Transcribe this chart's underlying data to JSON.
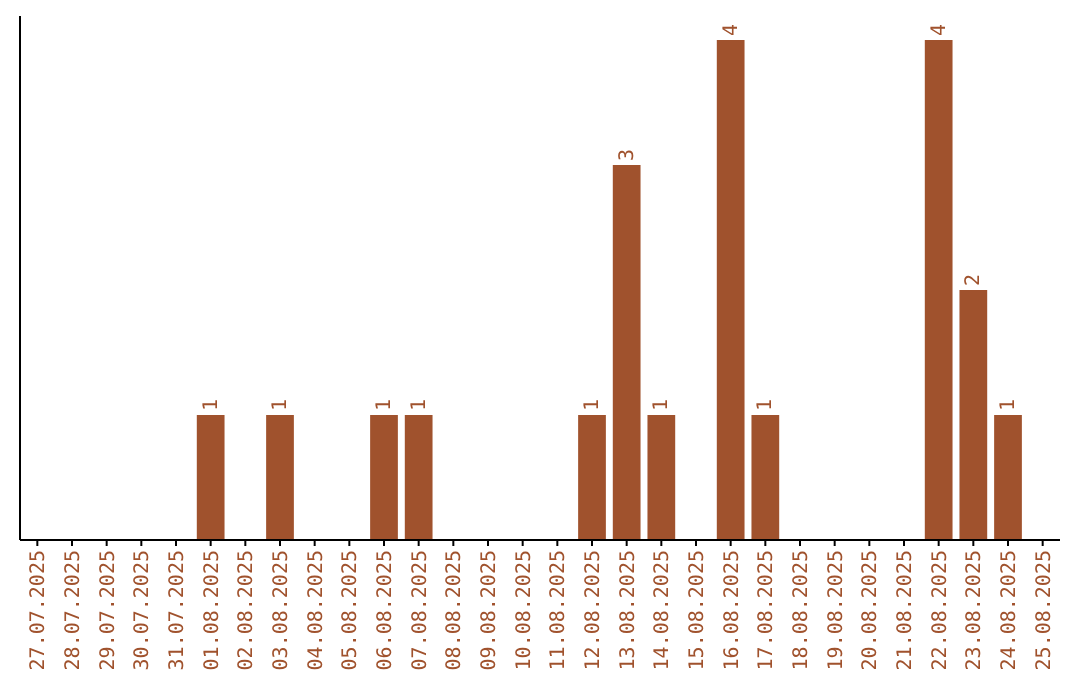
{
  "chart_data": {
    "type": "bar",
    "categories": [
      "27.07.2025",
      "28.07.2025",
      "29.07.2025",
      "30.07.2025",
      "31.07.2025",
      "01.08.2025",
      "02.08.2025",
      "03.08.2025",
      "04.08.2025",
      "05.08.2025",
      "06.08.2025",
      "07.08.2025",
      "08.08.2025",
      "09.08.2025",
      "10.08.2025",
      "11.08.2025",
      "12.08.2025",
      "13.08.2025",
      "14.08.2025",
      "15.08.2025",
      "16.08.2025",
      "17.08.2025",
      "18.08.2025",
      "19.08.2025",
      "20.08.2025",
      "21.08.2025",
      "22.08.2025",
      "23.08.2025",
      "24.08.2025",
      "25.08.2025"
    ],
    "values": [
      0,
      0,
      0,
      0,
      0,
      1,
      0,
      1,
      0,
      0,
      1,
      1,
      0,
      0,
      0,
      0,
      1,
      3,
      1,
      0,
      4,
      1,
      0,
      0,
      0,
      0,
      4,
      2,
      1,
      0
    ],
    "value_labels": [
      null,
      null,
      null,
      null,
      null,
      "1",
      null,
      "1",
      null,
      null,
      "1",
      "1",
      null,
      null,
      null,
      null,
      "1",
      "3",
      "1",
      null,
      "4",
      "1",
      null,
      null,
      null,
      null,
      "4",
      "2",
      "1",
      null
    ],
    "color": "#a0522d",
    "tick_labels": "x"
  }
}
